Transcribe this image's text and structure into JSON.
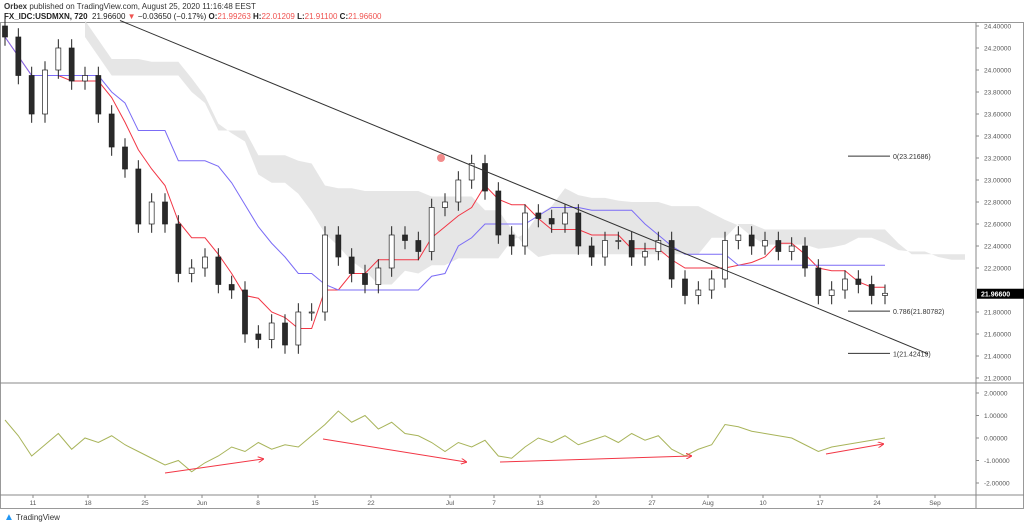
{
  "header": {
    "publisher": "Orbex",
    "published_text": "published on TradingView.com, August 25, 2020 11:16:48 EEST",
    "symbol": "FX_IDC:USDMXN, 720",
    "last": "21.96600",
    "change": "−0.03650 (−0.17%)",
    "o_label": "O:",
    "o": "21.99263",
    "h_label": "H:",
    "h": "22.01209",
    "l_label": "L:",
    "l": "21.91100",
    "c_label": "C:",
    "c": "21.96600"
  },
  "colors": {
    "up": "#ffffff",
    "down": "#2a2a2a",
    "tenkan": "#f23645",
    "kijun": "#7b6cf6",
    "cloud": "#e0e0e0",
    "trend": "#333333",
    "oscillator": "#a8b45a",
    "arrows": "#f23645",
    "last_price_bg": "#000000"
  },
  "chart_data": [
    {
      "type": "candlestick",
      "title": "",
      "ylim": [
        21.2,
        24.4
      ],
      "y_ticks": [
        "24.40000",
        "24.20000",
        "24.00000",
        "23.80000",
        "23.60000",
        "23.40000",
        "23.20000",
        "23.00000",
        "22.80000",
        "22.60000",
        "22.40000",
        "22.20000",
        "21.80000",
        "21.60000",
        "21.40000",
        "21.20000"
      ],
      "x_ticks": [
        "11",
        "18",
        "25",
        "Jun",
        "8",
        "15",
        "22",
        "Jul",
        "7",
        "13",
        "20",
        "27",
        "Aug",
        "10",
        "17",
        "24",
        "Sep"
      ],
      "last_price_label": "21.96600",
      "closes": [
        24.3,
        23.95,
        23.6,
        24.0,
        24.2,
        23.9,
        23.95,
        23.6,
        23.3,
        23.1,
        22.6,
        22.8,
        22.6,
        22.15,
        22.2,
        22.3,
        22.05,
        22.0,
        21.6,
        21.55,
        21.7,
        21.5,
        21.8,
        21.8,
        22.5,
        22.3,
        22.15,
        22.05,
        22.2,
        22.5,
        22.45,
        22.35,
        22.75,
        22.8,
        23.0,
        23.15,
        22.9,
        22.5,
        22.4,
        22.7,
        22.65,
        22.6,
        22.7,
        22.4,
        22.3,
        22.45,
        22.45,
        22.3,
        22.35,
        22.45,
        22.1,
        21.95,
        22.0,
        22.1,
        22.45,
        22.5,
        22.4,
        22.45,
        22.35,
        22.4,
        22.2,
        21.95,
        22.0,
        22.1,
        22.05,
        21.95,
        21.97
      ],
      "trendline": {
        "start": 24.45,
        "end": 21.42
      },
      "fib_levels": [
        {
          "label": "0(23.21686)",
          "value": 23.21686
        },
        {
          "label": "0.786(21.80782)",
          "value": 21.80782
        },
        {
          "label": "1(21.42419)",
          "value": 21.42419
        }
      ]
    },
    {
      "type": "line",
      "ylim": [
        -2.2,
        2.2
      ],
      "y_ticks": [
        "2.00000",
        "1.00000",
        "0.00000",
        "-1.00000",
        "-2.00000"
      ],
      "values": [
        0.8,
        0.1,
        -0.8,
        -0.3,
        0.2,
        -0.5,
        0.0,
        -0.2,
        0.1,
        -0.3,
        -0.6,
        -0.9,
        -1.2,
        -1.0,
        -1.5,
        -1.1,
        -0.8,
        -0.4,
        -0.6,
        -0.2,
        -0.5,
        -0.3,
        -0.4,
        0.1,
        0.6,
        1.2,
        0.7,
        1.0,
        0.4,
        0.7,
        0.2,
        0.1,
        -0.2,
        -0.6,
        -0.2,
        -0.4,
        -0.1,
        -0.8,
        -0.9,
        -0.4,
        0.0,
        -0.2,
        0.1,
        -0.3,
        -0.1,
        0.1,
        -0.2,
        0.2,
        -0.1,
        0.1,
        -0.5,
        -0.8,
        -0.5,
        -0.3,
        0.6,
        0.5,
        0.3,
        0.2,
        0.1,
        0.0,
        -0.3,
        -0.6,
        -0.4,
        -0.3,
        -0.2,
        -0.1,
        0.0
      ]
    }
  ],
  "footer": {
    "brand": "TradingView"
  }
}
